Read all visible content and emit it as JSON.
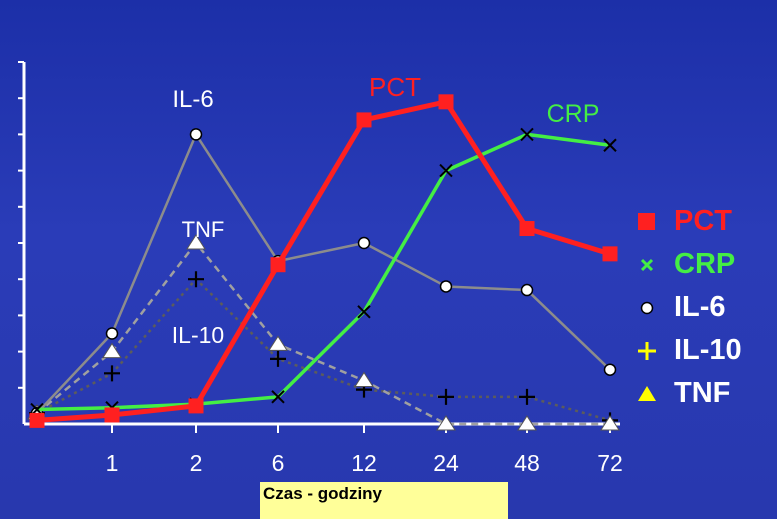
{
  "chart_data": {
    "type": "line",
    "title": "",
    "xlabel": "Czas - godziny",
    "ylabel": "",
    "categories": [
      "",
      "1",
      "2",
      "6",
      "12",
      "24",
      "48",
      "72"
    ],
    "ylim": [
      0,
      10
    ],
    "grid": false,
    "legend_position": "right",
    "series": [
      {
        "name": "PCT",
        "color": "#ff2020",
        "marker": "square",
        "style": "solid",
        "width": 5,
        "values": [
          0.1,
          0.25,
          0.5,
          4.4,
          8.4,
          8.9,
          5.4,
          4.7
        ]
      },
      {
        "name": "CRP",
        "color": "#44ee44",
        "marker": "x",
        "style": "solid",
        "width": 3.5,
        "values": [
          0.4,
          0.45,
          0.55,
          0.75,
          3.1,
          7.0,
          8.0,
          7.7
        ]
      },
      {
        "name": "IL-6",
        "color": "#8c8c8c",
        "marker": "circle",
        "style": "solid",
        "width": 2.5,
        "values": [
          0.3,
          2.5,
          8.0,
          4.5,
          5.0,
          3.8,
          3.7,
          1.5
        ]
      },
      {
        "name": "IL-10",
        "color": "#5c5c5c",
        "marker": "plus",
        "style": "dotted",
        "width": 2.5,
        "values": [
          0.3,
          1.4,
          4.0,
          1.8,
          0.95,
          0.75,
          0.75,
          0.1
        ]
      },
      {
        "name": "TNF",
        "color": "#a0a0a0",
        "marker": "triangle",
        "style": "dashed",
        "width": 2.5,
        "values": [
          0.3,
          2.0,
          5.0,
          2.2,
          1.2,
          0.0,
          0.0,
          0.0
        ]
      }
    ],
    "annotations": [
      {
        "text": "IL-6",
        "color": "#ffffff"
      },
      {
        "text": "TNF",
        "color": "#ffffff"
      },
      {
        "text": "IL-10",
        "color": "#ffffff"
      },
      {
        "text": "PCT",
        "color": "#ff2020"
      },
      {
        "text": "CRP",
        "color": "#44ee44"
      }
    ]
  },
  "legend": {
    "items": [
      {
        "label": "PCT",
        "color": "#ff2020",
        "symbol": "square"
      },
      {
        "label": "CRP",
        "color": "#44ee44",
        "symbol": "x"
      },
      {
        "label": "IL-6",
        "color": "#ffffff",
        "symbol": "circle"
      },
      {
        "label": "IL-10",
        "color": "#ffffff",
        "symbol": "plus"
      },
      {
        "label": "TNF",
        "color": "#ffffff",
        "symbol": "triangle"
      }
    ],
    "symbol_colors": {
      "circle": "#ffffff",
      "plus": "#ffff00",
      "triangle": "#ffff00"
    }
  }
}
